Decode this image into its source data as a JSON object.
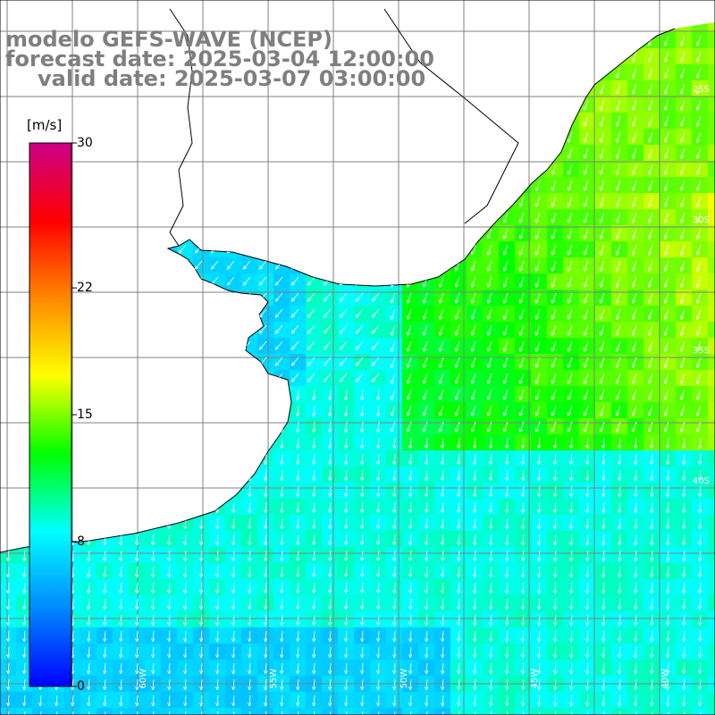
{
  "title": {
    "model": "modelo GEFS-WAVE (NCEP)",
    "forecast": "forecast date: 2025-03-04 12:00:00",
    "valid": "valid date: 2025-03-07 03:00:00"
  },
  "colorbar": {
    "units": "[m/s]",
    "ticks": [
      {
        "label": "30",
        "value": 30
      },
      {
        "label": "22",
        "value": 22
      },
      {
        "label": "15",
        "value": 15
      },
      {
        "label": "8",
        "value": 8
      },
      {
        "label": "0",
        "value": 0
      }
    ],
    "colors": [
      "#0000ff",
      "#0088ff",
      "#00ffff",
      "#00ff00",
      "#ffff00",
      "#ff8800",
      "#ff0000",
      "#cc0088"
    ]
  },
  "map": {
    "lat_labels": [
      "25S",
      "30S",
      "35S",
      "40S"
    ],
    "lon_labels": [
      "60W",
      "55W",
      "50W",
      "45W",
      "40W"
    ],
    "land_color": "#ffffff",
    "grid_color": "#808080",
    "coast_color": "#000000",
    "arrow_color": "#ffffff"
  }
}
